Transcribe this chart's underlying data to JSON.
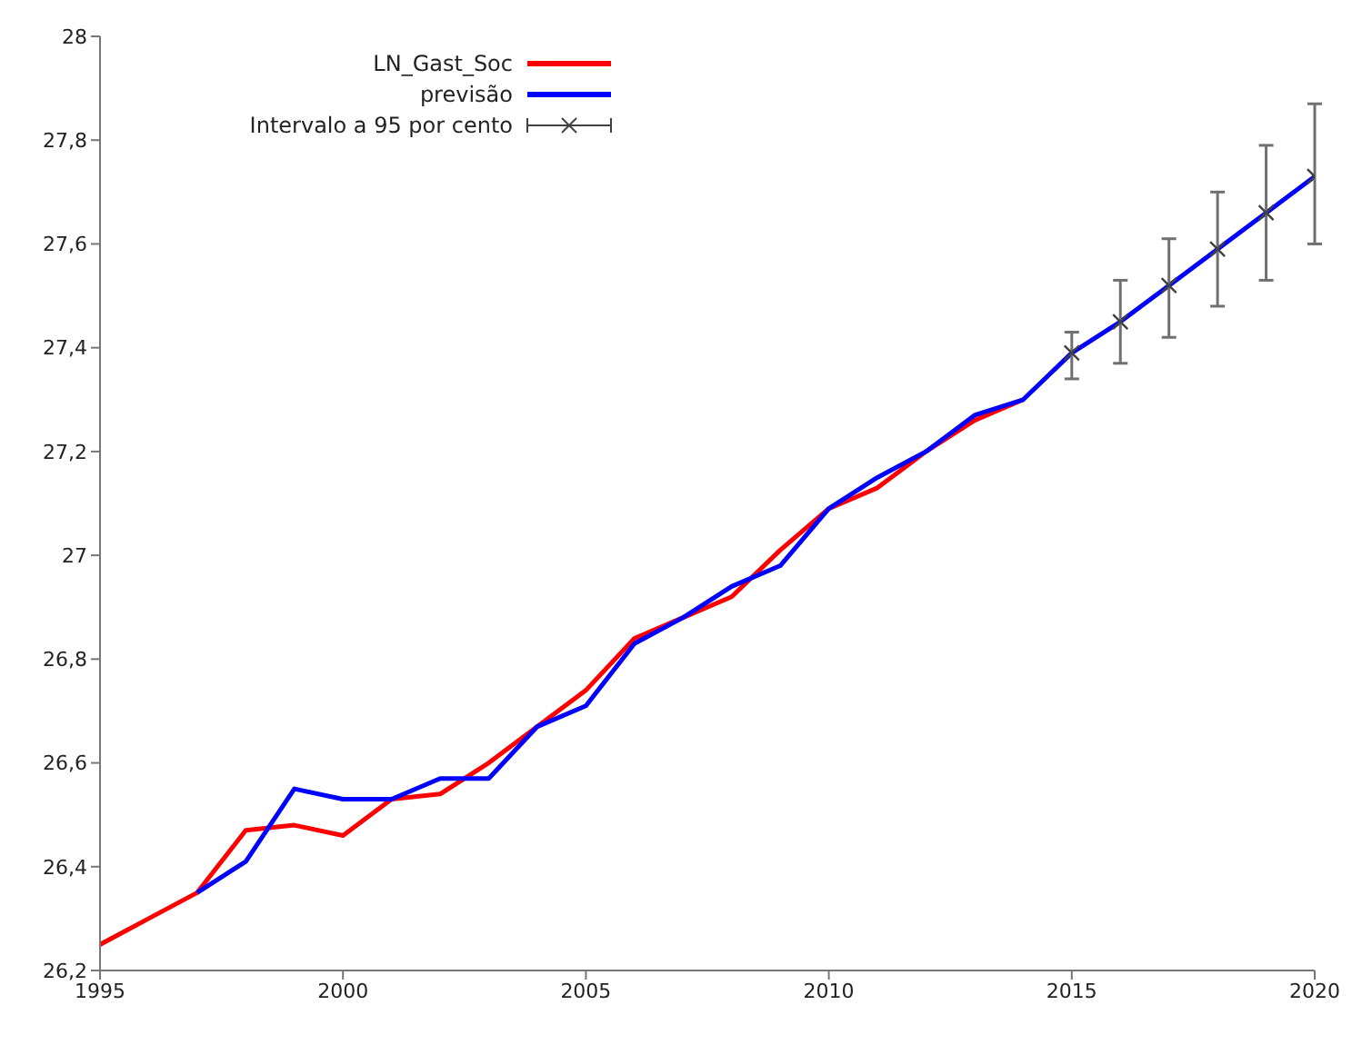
{
  "chart_data": {
    "type": "line",
    "x": [
      1995,
      1996,
      1997,
      1998,
      1999,
      2000,
      2001,
      2002,
      2003,
      2004,
      2005,
      2006,
      2007,
      2008,
      2009,
      2010,
      2011,
      2012,
      2013,
      2014
    ],
    "series": [
      {
        "name": "LN_Gast_Soc",
        "color": "#ff0000",
        "values": [
          26.25,
          26.3,
          26.35,
          26.47,
          26.48,
          26.46,
          26.53,
          26.54,
          26.6,
          26.67,
          26.74,
          26.84,
          26.88,
          26.92,
          27.01,
          27.09,
          27.13,
          27.2,
          27.26,
          27.3
        ]
      },
      {
        "name": "previsão",
        "color": "#0000ff",
        "x": [
          1997,
          1998,
          1999,
          2000,
          2001,
          2002,
          2003,
          2004,
          2005,
          2006,
          2007,
          2008,
          2009,
          2010,
          2011,
          2012,
          2013,
          2014,
          2015,
          2016,
          2017,
          2018,
          2019,
          2020
        ],
        "values": [
          26.35,
          26.41,
          26.55,
          26.53,
          26.53,
          26.57,
          26.57,
          26.67,
          26.71,
          26.83,
          26.88,
          26.94,
          26.98,
          27.09,
          27.15,
          27.2,
          27.27,
          27.3,
          27.39,
          27.45,
          27.52,
          27.59,
          27.66,
          27.73
        ]
      },
      {
        "name": "Intervalo a 95 por cento",
        "type": "scatter",
        "marker": "cross",
        "color": "#404040",
        "x": [
          2015,
          2016,
          2017,
          2018,
          2019,
          2020
        ],
        "values": [
          27.39,
          27.45,
          27.52,
          27.59,
          27.66,
          27.73
        ],
        "errors": [
          [
            27.34,
            27.43
          ],
          [
            27.37,
            27.53
          ],
          [
            27.42,
            27.61
          ],
          [
            27.48,
            27.7
          ],
          [
            27.53,
            27.79
          ],
          [
            27.6,
            27.87
          ]
        ]
      }
    ],
    "xlim": [
      1995,
      2020
    ],
    "xticks": [
      1995,
      2000,
      2005,
      2010,
      2015,
      2020
    ],
    "ylim": [
      26.2,
      28
    ],
    "yticks": [
      {
        "value": 26.2,
        "label": "26,2"
      },
      {
        "value": 26.4,
        "label": "26,4"
      },
      {
        "value": 26.6,
        "label": "26,6"
      },
      {
        "value": 26.8,
        "label": "26,8"
      },
      27,
      {
        "value": 27.2,
        "label": "27,2"
      },
      {
        "value": 27.4,
        "label": "27,4"
      },
      {
        "value": 27.6,
        "label": "27,6"
      },
      {
        "value": 27.8,
        "label": "27,8"
      },
      28
    ],
    "grid": false,
    "legend": "top left",
    "marker": "none",
    "line_style": "solid"
  }
}
